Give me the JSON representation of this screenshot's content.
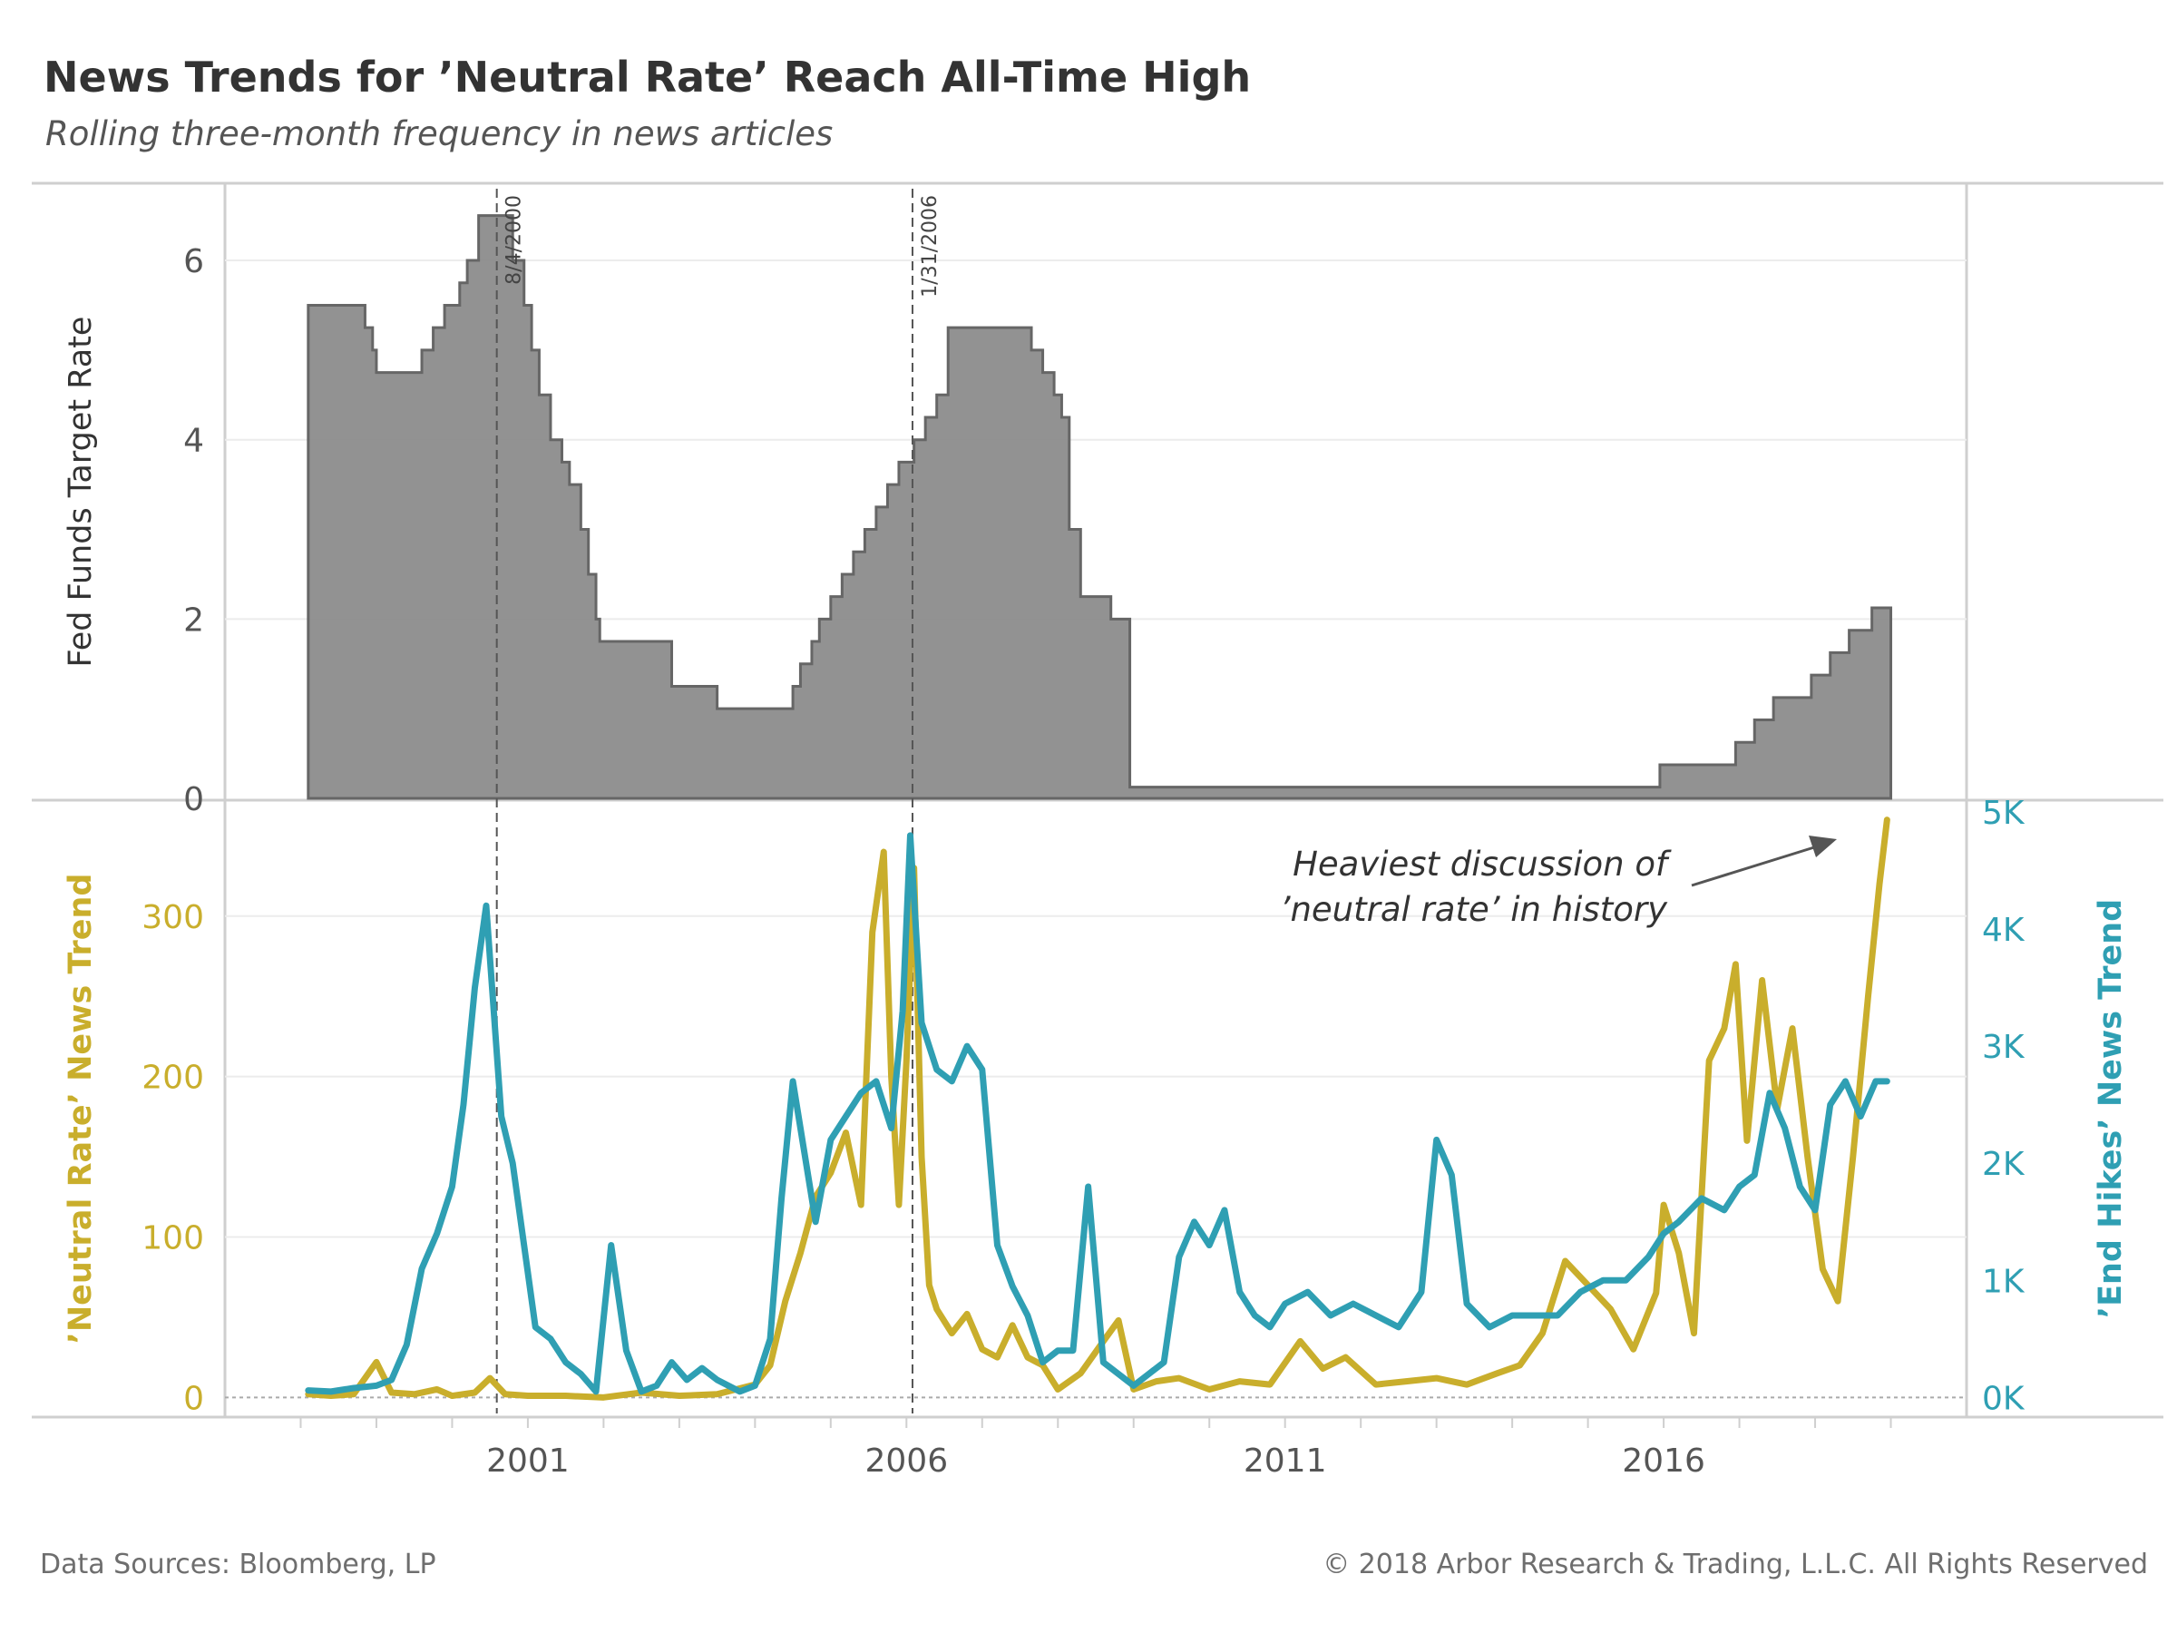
{
  "title": "News Trends for ’Neutral Rate’ Reach All-Time High",
  "subtitle": "Rolling three-month frequency in news articles",
  "footer": {
    "source": "Data Sources: Bloomberg, LP",
    "copyright": "© 2018 Arbor Research & Trading, L.L.C. All Rights Reserved"
  },
  "colors": {
    "fed_fill": "#8c8c8c",
    "fed_line": "#666666",
    "neutral": "#c9ae2c",
    "end_hikes": "#2f9fb3",
    "grid": "#ececec",
    "axis": "#cfcfcf"
  },
  "chart_data": [
    {
      "type": "area",
      "panel": "top",
      "ylabel": "Fed Funds Target Rate",
      "ylim": [
        0,
        6.8
      ],
      "yticks": [
        0,
        2,
        4,
        6
      ],
      "x_ticks": [
        "2001",
        "2006",
        "2011",
        "2016"
      ],
      "x_tick_years": [
        2001,
        2006,
        2011,
        2016
      ],
      "xlim": [
        1997.0,
        2020.0
      ],
      "grid": true,
      "series": [
        {
          "x": [
            1998.1,
            1998.85,
            1998.95,
            1999.0,
            1999.6,
            1999.75,
            1999.9,
            2000.1,
            2000.2,
            2000.35,
            2000.6,
            2000.8,
            2000.95,
            2001.05,
            2001.15,
            2001.3,
            2001.45,
            2001.55,
            2001.7,
            2001.8,
            2001.9,
            2001.95,
            2002.9,
            2003.5,
            2004.5,
            2004.6,
            2004.75,
            2004.85,
            2005.0,
            2005.15,
            2005.3,
            2005.45,
            2005.6,
            2005.75,
            2005.9,
            2006.1,
            2006.25,
            2006.4,
            2006.55,
            2007.65,
            2007.8,
            2007.95,
            2008.05,
            2008.15,
            2008.3,
            2008.7,
            2008.95,
            2015.95,
            2016.95,
            2017.2,
            2017.45,
            2017.95,
            2018.2,
            2018.45,
            2018.75,
            2018.95,
            2019.0
          ],
          "y": [
            5.5,
            5.25,
            5.0,
            4.75,
            5.0,
            5.25,
            5.5,
            5.75,
            6.0,
            6.5,
            6.5,
            6.0,
            5.5,
            5.0,
            4.5,
            4.0,
            3.75,
            3.5,
            3.0,
            2.5,
            2.0,
            1.75,
            1.25,
            1.0,
            1.25,
            1.5,
            1.75,
            2.0,
            2.25,
            2.5,
            2.75,
            3.0,
            3.25,
            3.5,
            3.75,
            4.0,
            4.25,
            4.5,
            5.25,
            5.0,
            4.75,
            4.5,
            4.25,
            3.0,
            2.25,
            2.0,
            0.125,
            0.375,
            0.625,
            0.875,
            1.125,
            1.375,
            1.625,
            1.875,
            2.125,
            2.125,
            2.125
          ]
        }
      ],
      "annotations": [
        {
          "label": "8/4/2000",
          "x": 2000.59
        },
        {
          "label": "1/31/2006",
          "x": 2006.08
        }
      ]
    },
    {
      "type": "line",
      "panel": "bottom",
      "ylabel": "’Neutral Rate’ News Trend",
      "y2label": "’End Hikes’ News Trend",
      "ylim": [
        -10,
        370
      ],
      "yticks": [
        0,
        100,
        200,
        300
      ],
      "y2lim": [
        -137,
        5070
      ],
      "y2ticks": [
        "0K",
        "1K",
        "2K",
        "3K",
        "4K",
        "5K"
      ],
      "y2tick_values": [
        0,
        1000,
        2000,
        3000,
        4000,
        5000
      ],
      "x_ticks": [
        "2001",
        "2006",
        "2011",
        "2016"
      ],
      "xlim": [
        1997.0,
        2020.0
      ],
      "annotation": {
        "line1": "Heaviest discussion of",
        "line2": "’neutral rate’ in history"
      },
      "series": [
        {
          "name": "’Neutral Rate’ News Trend",
          "axis": "left",
          "x": [
            1998.1,
            1998.4,
            1998.7,
            1999.0,
            1999.2,
            1999.5,
            1999.8,
            2000.0,
            2000.3,
            2000.5,
            2000.7,
            2001.0,
            2001.5,
            2002.0,
            2002.5,
            2003.0,
            2003.5,
            2004.0,
            2004.2,
            2004.4,
            2004.6,
            2004.8,
            2005.0,
            2005.2,
            2005.4,
            2005.55,
            2005.7,
            2005.8,
            2005.9,
            2006.0,
            2006.1,
            2006.2,
            2006.3,
            2006.4,
            2006.6,
            2006.8,
            2007.0,
            2007.2,
            2007.4,
            2007.6,
            2007.8,
            2008.0,
            2008.3,
            2008.6,
            2008.8,
            2009.0,
            2009.3,
            2009.6,
            2010.0,
            2010.4,
            2010.8,
            2011.2,
            2011.5,
            2011.8,
            2012.2,
            2012.6,
            2013.0,
            2013.4,
            2013.8,
            2014.1,
            2014.4,
            2014.7,
            2015.0,
            2015.3,
            2015.6,
            2015.9,
            2016.0,
            2016.2,
            2016.4,
            2016.6,
            2016.8,
            2016.95,
            2017.1,
            2017.3,
            2017.5,
            2017.7,
            2017.9,
            2018.1,
            2018.3,
            2018.5,
            2018.7,
            2018.85,
            2018.95
          ],
          "y": [
            2,
            1,
            2,
            22,
            3,
            2,
            5,
            1,
            3,
            12,
            2,
            1,
            1,
            0,
            3,
            1,
            2,
            8,
            20,
            60,
            90,
            125,
            140,
            165,
            120,
            290,
            340,
            200,
            120,
            210,
            330,
            150,
            70,
            55,
            40,
            52,
            30,
            25,
            45,
            25,
            20,
            5,
            15,
            35,
            48,
            5,
            10,
            12,
            5,
            10,
            8,
            35,
            18,
            25,
            8,
            10,
            12,
            8,
            15,
            20,
            40,
            85,
            70,
            55,
            30,
            65,
            120,
            90,
            40,
            210,
            230,
            270,
            160,
            260,
            180,
            230,
            150,
            80,
            60,
            150,
            250,
            320,
            360
          ]
        },
        {
          "name": "’End Hikes’ News Trend",
          "axis": "right",
          "x": [
            1998.1,
            1998.4,
            1998.7,
            1999.0,
            1999.2,
            1999.4,
            1999.6,
            1999.8,
            2000.0,
            2000.15,
            2000.3,
            2000.45,
            2000.55,
            2000.65,
            2000.8,
            2000.95,
            2001.1,
            2001.3,
            2001.5,
            2001.7,
            2001.9,
            2002.1,
            2002.3,
            2002.5,
            2002.7,
            2002.9,
            2003.1,
            2003.3,
            2003.5,
            2003.8,
            2004.0,
            2004.2,
            2004.35,
            2004.5,
            2004.65,
            2004.8,
            2005.0,
            2005.2,
            2005.4,
            2005.6,
            2005.8,
            2005.95,
            2006.05,
            2006.2,
            2006.4,
            2006.6,
            2006.8,
            2007.0,
            2007.2,
            2007.4,
            2007.6,
            2007.8,
            2008.0,
            2008.2,
            2008.4,
            2008.6,
            2008.8,
            2009.0,
            2009.2,
            2009.4,
            2009.6,
            2009.8,
            2010.0,
            2010.2,
            2010.4,
            2010.6,
            2010.8,
            2011.0,
            2011.3,
            2011.6,
            2011.9,
            2012.2,
            2012.5,
            2012.8,
            2013.0,
            2013.2,
            2013.4,
            2013.7,
            2014.0,
            2014.3,
            2014.6,
            2014.9,
            2015.2,
            2015.5,
            2015.8,
            2016.0,
            2016.2,
            2016.5,
            2016.8,
            2017.0,
            2017.2,
            2017.4,
            2017.6,
            2017.8,
            2018.0,
            2018.2,
            2018.4,
            2018.6,
            2018.8,
            2018.95
          ],
          "y": [
            60,
            50,
            80,
            100,
            150,
            450,
            1100,
            1400,
            1800,
            2500,
            3500,
            4200,
            3300,
            2400,
            2000,
            1300,
            600,
            500,
            300,
            200,
            50,
            1300,
            400,
            50,
            100,
            300,
            150,
            250,
            150,
            50,
            100,
            500,
            1700,
            2700,
            2100,
            1500,
            2200,
            2400,
            2600,
            2700,
            2300,
            3300,
            4800,
            3200,
            2800,
            2700,
            3000,
            2800,
            1300,
            950,
            700,
            300,
            400,
            400,
            1800,
            300,
            200,
            100,
            200,
            300,
            1200,
            1500,
            1300,
            1600,
            900,
            700,
            600,
            800,
            900,
            700,
            800,
            700,
            600,
            900,
            2200,
            1900,
            800,
            600,
            700,
            700,
            700,
            900,
            1000,
            1000,
            1200,
            1400,
            1500,
            1700,
            1600,
            1800,
            1900,
            2600,
            2300,
            1800,
            1600,
            2500,
            2700,
            2400,
            2700,
            2700
          ]
        }
      ]
    }
  ]
}
